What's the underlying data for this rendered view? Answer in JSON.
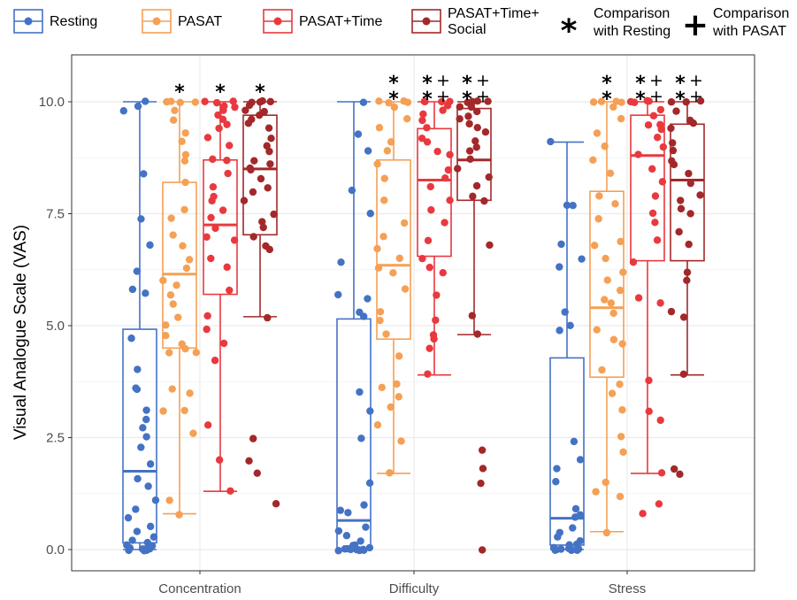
{
  "colors": {
    "Resting": "#4472C4",
    "PASAT": "#F5A054",
    "PASAT+Time": "#E8393F",
    "PASAT+Time+Social": "#A3282A",
    "grid": "#ebebeb",
    "panel_border": "#333333"
  },
  "legend": {
    "items": [
      {
        "name": "Resting",
        "lines": [
          "Resting"
        ]
      },
      {
        "name": "PASAT",
        "lines": [
          "PASAT"
        ]
      },
      {
        "name": "PASAT+Time",
        "lines": [
          "PASAT+Time"
        ]
      },
      {
        "name": "PASAT+Time+Social",
        "lines": [
          "PASAT+Time+",
          "Social"
        ]
      }
    ],
    "symbols": [
      {
        "symbol": "*",
        "lines": [
          "Comparison",
          "with Resting"
        ]
      },
      {
        "symbol": "+",
        "lines": [
          "Comparison",
          "with PASAT"
        ]
      }
    ]
  },
  "chart_data": {
    "type": "box",
    "ylabel": "Visual Analogue Scale (VAS)",
    "xlabel": "",
    "ylim": [
      0,
      10
    ],
    "yticks": [
      "0.0",
      "2.5",
      "5.0",
      "7.5",
      "10.0"
    ],
    "grid": true,
    "legend_position": "top",
    "categories": [
      "Concentration",
      "Difficulty",
      "Stress"
    ],
    "groups": [
      "Resting",
      "PASAT",
      "PASAT+Time",
      "PASAT+Time+Social"
    ],
    "boxes": [
      {
        "category": "Concentration",
        "group": "Resting",
        "whisker_low": 0.0,
        "q1": 0.15,
        "median": 1.75,
        "q3": 4.92,
        "whisker_high": 10.0,
        "sig": ""
      },
      {
        "category": "Concentration",
        "group": "PASAT",
        "whisker_low": 0.8,
        "q1": 4.5,
        "median": 6.15,
        "q3": 8.2,
        "whisker_high": 10.0,
        "sig": "*"
      },
      {
        "category": "Concentration",
        "group": "PASAT+Time",
        "whisker_low": 1.3,
        "q1": 5.7,
        "median": 7.25,
        "q3": 8.7,
        "whisker_high": 10.0,
        "sig": "*"
      },
      {
        "category": "Concentration",
        "group": "PASAT+Time+Social",
        "whisker_low": 5.2,
        "q1": 7.03,
        "median": 8.5,
        "q3": 9.7,
        "whisker_high": 10.0,
        "sig": "*"
      },
      {
        "category": "Difficulty",
        "group": "Resting",
        "whisker_low": 0.0,
        "q1": 0.0,
        "median": 0.65,
        "q3": 5.15,
        "whisker_high": 10.0,
        "sig": ""
      },
      {
        "category": "Difficulty",
        "group": "PASAT",
        "whisker_low": 1.7,
        "q1": 4.7,
        "median": 6.35,
        "q3": 8.7,
        "whisker_high": 10.0,
        "sig": "**"
      },
      {
        "category": "Difficulty",
        "group": "PASAT+Time",
        "whisker_low": 3.9,
        "q1": 6.55,
        "median": 8.25,
        "q3": 9.4,
        "whisker_high": 10.0,
        "sig": "**++"
      },
      {
        "category": "Difficulty",
        "group": "PASAT+Time+Social",
        "whisker_low": 4.8,
        "q1": 7.8,
        "median": 8.7,
        "q3": 9.85,
        "whisker_high": 10.0,
        "sig": "**++"
      },
      {
        "category": "Stress",
        "group": "Resting",
        "whisker_low": 0.0,
        "q1": 0.1,
        "median": 0.7,
        "q3": 4.28,
        "whisker_high": 9.1,
        "sig": ""
      },
      {
        "category": "Stress",
        "group": "PASAT",
        "whisker_low": 0.4,
        "q1": 3.85,
        "median": 5.4,
        "q3": 8.0,
        "whisker_high": 10.0,
        "sig": "**"
      },
      {
        "category": "Stress",
        "group": "PASAT+Time",
        "whisker_low": 1.7,
        "q1": 6.45,
        "median": 8.8,
        "q3": 9.7,
        "whisker_high": 10.0,
        "sig": "**++"
      },
      {
        "category": "Stress",
        "group": "PASAT+Time+Social",
        "whisker_low": 3.9,
        "q1": 6.45,
        "median": 8.25,
        "q3": 9.5,
        "whisker_high": 10.0,
        "sig": "**++"
      }
    ],
    "points": [
      [
        0,
        0,
        0,
        0,
        0,
        0,
        0,
        0,
        0.05,
        0.1,
        0.1,
        0.15,
        0.2,
        0.3,
        0.4,
        0.5,
        0.7,
        0.9,
        1.1,
        1.4,
        1.6,
        1.9,
        2.3,
        2.5,
        2.7,
        2.9,
        3.1,
        3.6,
        3.6,
        4.0,
        4.7,
        5.7,
        5.8,
        6.2,
        6.8,
        7.4,
        8.4,
        9.8,
        9.9,
        10.0
      ],
      [
        0.8,
        1.1,
        2.6,
        3.1,
        3.1,
        3.5,
        3.6,
        4.4,
        4.4,
        4.5,
        4.6,
        4.8,
        5.0,
        5.2,
        5.5,
        5.7,
        5.9,
        6.0,
        6.3,
        6.5,
        6.8,
        7.0,
        7.4,
        7.6,
        8.2,
        8.7,
        8.8,
        9.1,
        9.3,
        9.6,
        9.8,
        10.0,
        10.0,
        10.0,
        10.0
      ],
      [
        1.3,
        2.0,
        2.8,
        4.2,
        4.6,
        4.9,
        5.2,
        5.8,
        6.3,
        6.5,
        6.9,
        7.0,
        7.2,
        7.4,
        7.6,
        7.8,
        7.9,
        8.1,
        8.4,
        8.7,
        8.7,
        9.0,
        9.2,
        9.4,
        9.5,
        9.6,
        9.7,
        9.8,
        9.9,
        9.9,
        10.0,
        10.0,
        10.0
      ],
      [
        1.0,
        1.7,
        2.0,
        2.5,
        5.2,
        6.7,
        6.8,
        7.0,
        7.2,
        7.3,
        7.5,
        7.8,
        8.0,
        8.1,
        8.3,
        8.5,
        8.5,
        8.6,
        8.7,
        8.9,
        9.0,
        9.2,
        9.4,
        9.5,
        9.6,
        9.7,
        9.8,
        9.8,
        9.9,
        10.0,
        10.0,
        10.0,
        10.0
      ],
      [
        0,
        0,
        0,
        0,
        0,
        0,
        0,
        0,
        0,
        0.05,
        0.1,
        0.1,
        0.2,
        0.3,
        0.4,
        0.5,
        0.8,
        0.9,
        1.0,
        1.5,
        2.5,
        3.1,
        3.5,
        5.2,
        5.3,
        5.6,
        5.7,
        6.4,
        7.5,
        8.0,
        8.9,
        9.3,
        10.0
      ],
      [
        1.7,
        2.4,
        2.8,
        3.2,
        3.4,
        3.6,
        3.7,
        4.3,
        4.8,
        5.1,
        5.3,
        5.8,
        6.2,
        6.3,
        6.5,
        6.7,
        7.0,
        7.3,
        7.8,
        8.3,
        8.6,
        8.9,
        9.1,
        9.4,
        9.6,
        9.9,
        10.0,
        10.0,
        10.0,
        10.0
      ],
      [
        3.9,
        4.5,
        4.7,
        4.8,
        5.1,
        5.7,
        6.2,
        6.3,
        6.5,
        6.9,
        7.3,
        7.6,
        7.8,
        8.1,
        8.3,
        8.5,
        8.8,
        8.9,
        9.1,
        9.2,
        9.4,
        9.6,
        9.7,
        9.8,
        9.9,
        10.0,
        10.0,
        10.0,
        10.0
      ],
      [
        0.0,
        1.5,
        1.8,
        2.2,
        4.8,
        5.2,
        6.8,
        7.8,
        7.9,
        8.1,
        8.3,
        8.5,
        8.7,
        8.9,
        9.0,
        9.1,
        9.3,
        9.4,
        9.5,
        9.6,
        9.7,
        9.8,
        9.9,
        9.9,
        10.0,
        10.0,
        10.0,
        10.0
      ],
      [
        0,
        0,
        0,
        0,
        0,
        0,
        0,
        0,
        0.05,
        0.1,
        0.1,
        0.2,
        0.3,
        0.4,
        0.5,
        0.7,
        0.8,
        0.9,
        1.5,
        1.8,
        2.0,
        2.4,
        4.9,
        5.0,
        5.3,
        6.3,
        6.5,
        6.8,
        7.7,
        7.7,
        9.1
      ],
      [
        0.4,
        1.2,
        1.3,
        1.5,
        2.2,
        2.5,
        3.1,
        3.5,
        3.7,
        4.0,
        4.6,
        4.7,
        4.9,
        5.3,
        5.5,
        5.6,
        5.8,
        6.0,
        6.2,
        6.5,
        6.8,
        6.9,
        7.4,
        7.7,
        7.9,
        8.4,
        8.7,
        9.0,
        9.3,
        9.6,
        9.9,
        10.0,
        10.0,
        10.0,
        10.0
      ],
      [
        0.8,
        1.0,
        1.7,
        2.9,
        3.1,
        3.8,
        5.5,
        5.6,
        6.4,
        6.9,
        7.3,
        7.5,
        7.9,
        8.2,
        8.5,
        8.8,
        9.0,
        9.2,
        9.4,
        9.5,
        9.5,
        9.7,
        9.8,
        10.0,
        10.0,
        10.0,
        10.0
      ],
      [
        1.7,
        1.8,
        3.9,
        5.2,
        5.3,
        6.0,
        6.2,
        6.8,
        7.1,
        7.5,
        7.6,
        7.8,
        7.9,
        8.2,
        8.4,
        8.6,
        8.7,
        8.9,
        9.1,
        9.4,
        9.5,
        9.6,
        9.8,
        10.0,
        10.0,
        10.0
      ]
    ]
  }
}
